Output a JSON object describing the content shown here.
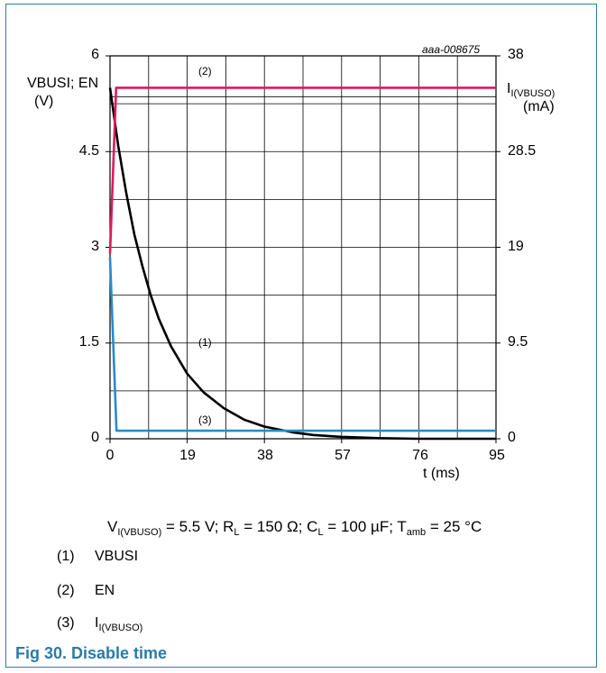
{
  "chart_data": {
    "type": "line",
    "annotation_code": "aaa-008675",
    "x": {
      "label": "t (ms)",
      "ticks": [
        "0",
        "19",
        "38",
        "57",
        "76",
        "95"
      ],
      "range": [
        0,
        95
      ]
    },
    "y_left": {
      "label_line1": "VBUSI; EN",
      "label_line2": "(V)",
      "ticks": [
        "0",
        "1.5",
        "3",
        "4.5",
        "6"
      ],
      "range": [
        0,
        6
      ]
    },
    "y_right": {
      "label_main": "I",
      "label_sub": "I(VBUSO)",
      "label_unit": "(mA)",
      "ticks": [
        "0",
        "9.5",
        "19",
        "28.5",
        "38"
      ],
      "range": [
        0,
        38
      ]
    },
    "grid": true,
    "series": [
      {
        "name": "VBUSI",
        "marker": "(1)",
        "color": "#000000",
        "axis": "left",
        "points": [
          [
            0,
            5.5
          ],
          [
            2,
            4.6
          ],
          [
            4,
            3.85
          ],
          [
            6,
            3.2
          ],
          [
            8,
            2.7
          ],
          [
            10,
            2.25
          ],
          [
            12,
            1.88
          ],
          [
            15,
            1.45
          ],
          [
            19,
            1.02
          ],
          [
            23,
            0.73
          ],
          [
            28,
            0.48
          ],
          [
            33,
            0.3
          ],
          [
            38,
            0.19
          ],
          [
            45,
            0.1
          ],
          [
            50,
            0.06
          ],
          [
            57,
            0.03
          ],
          [
            66,
            0.01
          ],
          [
            76,
            0.0
          ],
          [
            95,
            0.0
          ]
        ]
      },
      {
        "name": "EN",
        "marker": "(2)",
        "color": "#e0195a",
        "axis": "left",
        "points": [
          [
            0,
            2.9
          ],
          [
            1.5,
            5.5
          ],
          [
            95,
            5.5
          ]
        ]
      },
      {
        "name": "I(VBUSO)",
        "marker": "(3)",
        "color": "#2a8ac8",
        "axis": "right",
        "points": [
          [
            0,
            18.0
          ],
          [
            1.6,
            0.8
          ],
          [
            95,
            0.8
          ]
        ]
      }
    ]
  },
  "conditions": {
    "v_main": "V",
    "v_sub": "I(VBUSO)",
    "v_val": " = 5.5 V; R",
    "r_sub": "L",
    "r_val": " = 150 Ω; C",
    "c_sub": "L",
    "c_val": " = 100 µF; T",
    "t_sub": "amb",
    "t_val": " = 25 °C"
  },
  "legend": [
    {
      "num": "(1)",
      "label": "VBUSI"
    },
    {
      "num": "(2)",
      "label": "EN"
    },
    {
      "num": "(3)",
      "label_main": "I",
      "label_sub": "I(VBUSO)"
    }
  ],
  "figure_caption": "Fig 30.   Disable time",
  "colors": {
    "frame": "#2e7fa0",
    "caption": "#2a7aa8",
    "grid": "#000000"
  }
}
